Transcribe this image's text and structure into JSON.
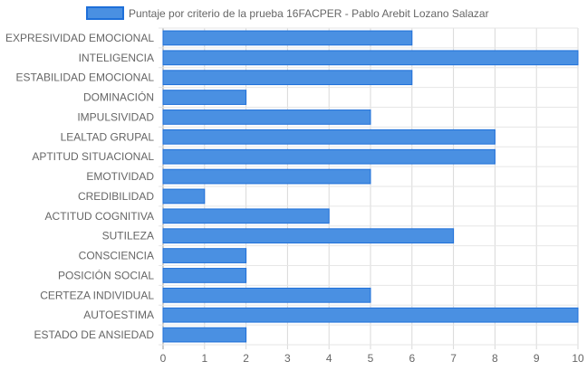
{
  "chart_data": {
    "type": "bar",
    "orientation": "horizontal",
    "title": "",
    "xlabel": "",
    "ylabel": "",
    "xlim": [
      0,
      10
    ],
    "x_ticks": [
      "0",
      "1",
      "2",
      "3",
      "4",
      "5",
      "6",
      "7",
      "8",
      "9",
      "10"
    ],
    "grid": true,
    "legend_position": "top",
    "categories": [
      "EXPRESIVIDAD EMOCIONAL",
      "INTELIGENCIA",
      "ESTABILIDAD EMOCIONAL",
      "DOMINACIÓN",
      "IMPULSIVIDAD",
      "LEALTAD GRUPAL",
      "APTITUD SITUACIONAL",
      "EMOTIVIDAD",
      "CREDIBILIDAD",
      "ACTITUD COGNITIVA",
      "SUTILEZA",
      "CONSCIENCIA",
      "POSICIÓN SOCIAL",
      "CERTEZA INDIVIDUAL",
      "AUTOESTIMA",
      "ESTADO DE ANSIEDAD"
    ],
    "series": [
      {
        "name": "Puntaje por criterio de la prueba 16FACPER - Pablo Arebit Lozano Salazar",
        "color": "#4a90e2",
        "border_color": "#1e6fd9",
        "values": [
          6,
          10,
          6,
          2,
          5,
          8,
          8,
          5,
          1,
          4,
          7,
          2,
          2,
          5,
          10,
          2
        ]
      }
    ]
  }
}
